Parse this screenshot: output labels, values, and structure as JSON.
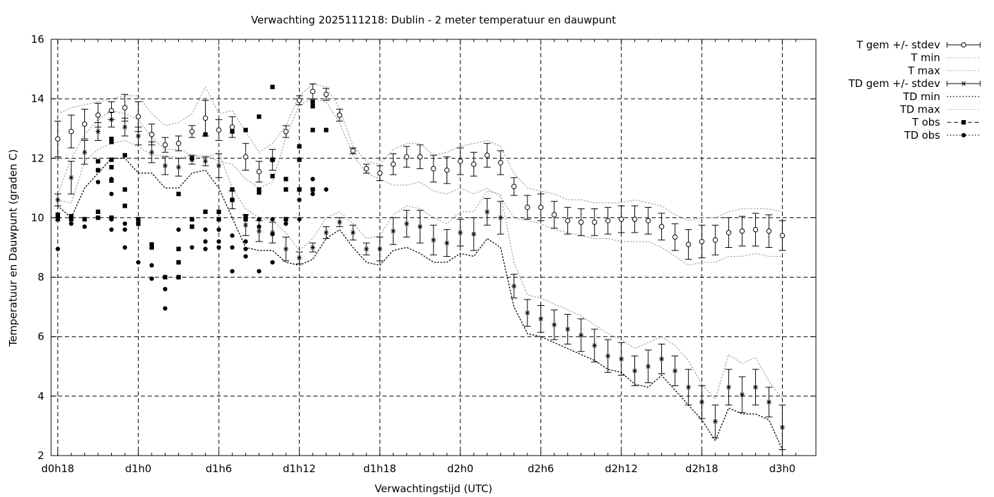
{
  "chart_data": {
    "type": "line",
    "title": "Verwachting 2025111218: Dublin - 2 meter temperatuur en dauwpunt",
    "xlabel": "Verwachtingstijd (UTC)",
    "ylabel": "Temperatuur en Dauwpunt (graden C)",
    "xlim": [
      -0.5,
      56.5
    ],
    "ylim": [
      2,
      16
    ],
    "y_ticks": [
      2,
      4,
      6,
      8,
      10,
      12,
      14,
      16
    ],
    "x_ticks": [
      {
        "x": 0,
        "label": "d0h18"
      },
      {
        "x": 6,
        "label": "d1h0"
      },
      {
        "x": 12,
        "label": "d1h6"
      },
      {
        "x": 18,
        "label": "d1h12"
      },
      {
        "x": 24,
        "label": "d1h18"
      },
      {
        "x": 30,
        "label": "d2h0"
      },
      {
        "x": 36,
        "label": "d2h6"
      },
      {
        "x": 42,
        "label": "d2h12"
      },
      {
        "x": 48,
        "label": "d2h18"
      },
      {
        "x": 54,
        "label": "d3h0"
      }
    ],
    "x_unit": "hours since d0h18",
    "grid": true,
    "legend_position": "outside-right",
    "colors": {
      "line": "#000000",
      "grid": "#000000",
      "minmax": "#999999"
    },
    "legend": [
      "T gem +/- stdev",
      "T min",
      "T max",
      "TD gem +/- stdev",
      "TD min",
      "TD max",
      "T obs",
      "TD obs"
    ],
    "series": [
      {
        "name": "T gem +/- stdev",
        "style": "errorbars-open-circle",
        "x": [
          0,
          1,
          2,
          3,
          4,
          5,
          6,
          7,
          8,
          9,
          10,
          11,
          12,
          13,
          14,
          15,
          16,
          17,
          18,
          19,
          20,
          21,
          22,
          23,
          24,
          25,
          26,
          27,
          28,
          29,
          30,
          31,
          32,
          33,
          34,
          35,
          36,
          37,
          38,
          39,
          40,
          41,
          42,
          43,
          44,
          45,
          46,
          47,
          48,
          49,
          50,
          51,
          52,
          53,
          54
        ],
        "y": [
          12.65,
          12.9,
          13.15,
          13.45,
          13.6,
          13.7,
          13.4,
          12.8,
          12.45,
          12.5,
          12.9,
          13.35,
          12.95,
          13.05,
          12.05,
          11.55,
          11.95,
          12.9,
          13.95,
          14.25,
          14.15,
          13.45,
          12.25,
          11.65,
          11.5,
          11.8,
          12.05,
          12.05,
          11.65,
          11.6,
          11.9,
          11.8,
          12.1,
          11.85,
          11.05,
          10.35,
          10.35,
          10.1,
          9.9,
          9.85,
          9.85,
          9.9,
          9.95,
          9.95,
          9.9,
          9.7,
          9.35,
          9.1,
          9.2,
          9.25,
          9.5,
          9.55,
          9.6,
          9.55,
          9.4
        ],
        "err": [
          0.6,
          0.55,
          0.5,
          0.4,
          0.3,
          0.45,
          0.5,
          0.35,
          0.25,
          0.25,
          0.2,
          0.6,
          0.35,
          0.35,
          0.45,
          0.35,
          0.35,
          0.2,
          0.15,
          0.25,
          0.2,
          0.2,
          0.1,
          0.15,
          0.25,
          0.35,
          0.35,
          0.4,
          0.45,
          0.45,
          0.45,
          0.4,
          0.4,
          0.4,
          0.3,
          0.4,
          0.45,
          0.45,
          0.45,
          0.45,
          0.45,
          0.45,
          0.45,
          0.45,
          0.45,
          0.45,
          0.45,
          0.5,
          0.55,
          0.5,
          0.5,
          0.5,
          0.55,
          0.55,
          0.5
        ]
      },
      {
        "name": "T min",
        "style": "dotted-grey",
        "x": [
          0,
          1,
          2,
          3,
          4,
          5,
          6,
          7,
          8,
          9,
          10,
          11,
          12,
          13,
          14,
          15,
          16,
          17,
          18,
          19,
          20,
          21,
          22,
          23,
          24,
          25,
          26,
          27,
          28,
          29,
          30,
          31,
          32,
          33,
          34,
          35,
          36,
          37,
          38,
          39,
          40,
          41,
          42,
          43,
          44,
          45,
          46,
          47,
          48,
          49,
          50,
          51,
          52,
          53,
          54
        ],
        "y": [
          10.6,
          10.5,
          11.9,
          12.3,
          12.5,
          12.6,
          12.4,
          12.1,
          12.1,
          12.0,
          12.1,
          12.1,
          11.9,
          11.8,
          11.3,
          11.0,
          11.2,
          12.7,
          13.8,
          14.0,
          13.9,
          13.2,
          12.1,
          11.5,
          11.3,
          11.1,
          11.1,
          11.2,
          10.9,
          10.8,
          11.0,
          10.8,
          11.0,
          10.7,
          10.0,
          9.9,
          9.8,
          9.6,
          9.5,
          9.4,
          9.3,
          9.3,
          9.2,
          9.2,
          9.2,
          9.0,
          8.7,
          8.4,
          8.5,
          8.5,
          8.7,
          8.7,
          8.8,
          8.7,
          8.7
        ]
      },
      {
        "name": "T max",
        "style": "dotted-grey",
        "x": [
          0,
          1,
          2,
          3,
          4,
          5,
          6,
          7,
          8,
          9,
          10,
          11,
          12,
          13,
          14,
          15,
          16,
          17,
          18,
          19,
          20,
          21,
          22,
          23,
          24,
          25,
          26,
          27,
          28,
          29,
          30,
          31,
          32,
          33,
          34,
          35,
          36,
          37,
          38,
          39,
          40,
          41,
          42,
          43,
          44,
          45,
          46,
          47,
          48,
          49,
          50,
          51,
          52,
          53,
          54
        ],
        "y": [
          13.5,
          13.7,
          13.8,
          13.9,
          14.0,
          14.1,
          14.1,
          13.5,
          13.1,
          13.2,
          13.5,
          14.4,
          13.5,
          13.6,
          12.9,
          12.2,
          12.5,
          13.1,
          14.1,
          14.5,
          14.4,
          13.7,
          12.4,
          11.9,
          11.8,
          12.3,
          12.5,
          12.5,
          12.1,
          12.2,
          12.4,
          12.5,
          12.6,
          12.4,
          11.5,
          11.0,
          10.9,
          10.8,
          10.6,
          10.6,
          10.5,
          10.5,
          10.5,
          10.6,
          10.5,
          10.4,
          10.1,
          9.9,
          10.0,
          10.0,
          10.2,
          10.3,
          10.3,
          10.3,
          10.2
        ]
      },
      {
        "name": "TD gem +/- stdev",
        "style": "errorbars-star",
        "x": [
          0,
          1,
          2,
          3,
          4,
          5,
          6,
          7,
          8,
          9,
          10,
          11,
          12,
          13,
          14,
          15,
          16,
          17,
          18,
          19,
          20,
          21,
          22,
          23,
          24,
          25,
          26,
          27,
          28,
          29,
          30,
          31,
          32,
          33,
          34,
          35,
          36,
          37,
          38,
          39,
          40,
          41,
          42,
          43,
          44,
          45,
          46,
          47,
          48,
          49,
          50,
          51,
          52,
          53,
          54
        ],
        "y": [
          10.6,
          11.35,
          12.2,
          12.9,
          13.3,
          13.05,
          12.75,
          12.2,
          11.75,
          11.7,
          11.95,
          11.9,
          11.75,
          10.6,
          9.75,
          9.55,
          9.5,
          8.95,
          8.65,
          9.0,
          9.5,
          9.85,
          9.5,
          8.95,
          8.95,
          9.55,
          9.8,
          9.7,
          9.25,
          9.15,
          9.5,
          9.45,
          10.2,
          10.0,
          7.7,
          6.8,
          6.6,
          6.4,
          6.25,
          6.05,
          5.7,
          5.35,
          5.25,
          4.85,
          5.0,
          5.25,
          4.85,
          4.3,
          3.8,
          3.15,
          4.3,
          4.05,
          4.3,
          3.8,
          2.95
        ],
        "err": [
          0.2,
          0.55,
          0.4,
          0.3,
          0.25,
          0.3,
          0.3,
          0.35,
          0.3,
          0.3,
          0.15,
          0.15,
          0.4,
          0.3,
          0.35,
          0.35,
          0.35,
          0.4,
          0.2,
          0.15,
          0.2,
          0.15,
          0.25,
          0.2,
          0.4,
          0.45,
          0.45,
          0.55,
          0.5,
          0.45,
          0.45,
          0.55,
          0.45,
          0.55,
          0.4,
          0.45,
          0.45,
          0.5,
          0.5,
          0.55,
          0.55,
          0.55,
          0.55,
          0.5,
          0.55,
          0.5,
          0.5,
          0.6,
          0.55,
          0.55,
          0.6,
          0.6,
          0.6,
          0.5,
          0.75
        ]
      },
      {
        "name": "TD min",
        "style": "dotted-black",
        "x": [
          0,
          1,
          2,
          3,
          4,
          5,
          6,
          7,
          8,
          9,
          10,
          11,
          12,
          13,
          14,
          15,
          16,
          17,
          18,
          19,
          20,
          21,
          22,
          23,
          24,
          25,
          26,
          27,
          28,
          29,
          30,
          31,
          32,
          33,
          34,
          35,
          36,
          37,
          38,
          39,
          40,
          41,
          42,
          43,
          44,
          45,
          46,
          47,
          48,
          49,
          50,
          51,
          52,
          53,
          54
        ],
        "y": [
          10.4,
          10.0,
          11.0,
          11.5,
          12.0,
          12.0,
          11.5,
          11.5,
          11.0,
          11.0,
          11.5,
          11.6,
          11.0,
          10.0,
          9.0,
          8.9,
          8.9,
          8.5,
          8.4,
          8.6,
          9.3,
          9.6,
          9.0,
          8.5,
          8.4,
          8.9,
          9.0,
          8.8,
          8.5,
          8.5,
          8.8,
          8.7,
          9.3,
          9.0,
          7.0,
          6.1,
          6.0,
          5.8,
          5.6,
          5.4,
          5.2,
          4.9,
          4.8,
          4.4,
          4.3,
          4.7,
          4.2,
          3.7,
          3.2,
          2.5,
          3.6,
          3.4,
          3.4,
          3.2,
          2.2
        ]
      },
      {
        "name": "TD max",
        "style": "dotted-grey",
        "x": [
          0,
          1,
          2,
          3,
          4,
          5,
          6,
          7,
          8,
          9,
          10,
          11,
          12,
          13,
          14,
          15,
          16,
          17,
          18,
          19,
          20,
          21,
          22,
          23,
          24,
          25,
          26,
          27,
          28,
          29,
          30,
          31,
          32,
          33,
          34,
          35,
          36,
          37,
          38,
          39,
          40,
          41,
          42,
          43,
          44,
          45,
          46,
          47,
          48,
          49,
          50,
          51,
          52,
          53,
          54
        ],
        "y": [
          10.8,
          12.0,
          12.8,
          13.3,
          13.6,
          13.5,
          13.3,
          12.7,
          12.3,
          12.3,
          12.1,
          12.0,
          12.2,
          11.0,
          10.3,
          10.0,
          9.9,
          9.5,
          8.9,
          9.3,
          10.0,
          10.2,
          9.8,
          9.3,
          9.4,
          10.1,
          10.4,
          10.3,
          10.0,
          9.8,
          10.2,
          10.2,
          10.9,
          10.8,
          8.5,
          7.4,
          7.3,
          7.1,
          6.9,
          6.7,
          6.4,
          6.1,
          5.9,
          5.6,
          5.8,
          6.0,
          5.7,
          5.2,
          4.4,
          3.9,
          5.4,
          5.1,
          5.3,
          4.5,
          3.9
        ]
      },
      {
        "name": "T obs",
        "style": "filled-square",
        "x": [
          0,
          0,
          0,
          1,
          1,
          1,
          2,
          3,
          3,
          3,
          3,
          4,
          4,
          4,
          4,
          4,
          4,
          5,
          5,
          5,
          6,
          6,
          7,
          7,
          8,
          9,
          9,
          9,
          9,
          10,
          10,
          10,
          11,
          11,
          12,
          12,
          13,
          13,
          13,
          14,
          14,
          14,
          15,
          15,
          15,
          16,
          16,
          16,
          17,
          17,
          17,
          18,
          18,
          18,
          19,
          19,
          19,
          19,
          20
        ],
        "y": [
          10.1,
          10.0,
          9.95,
          10.05,
          10.0,
          9.95,
          9.95,
          11.9,
          11.6,
          10.2,
          10.0,
          12.65,
          12.55,
          11.95,
          11.7,
          11.25,
          10.0,
          12.1,
          10.95,
          10.4,
          9.95,
          9.8,
          9.1,
          9.0,
          8.0,
          10.8,
          8.95,
          8.5,
          8.0,
          12.0,
          9.95,
          9.7,
          12.8,
          10.2,
          10.2,
          9.95,
          12.9,
          10.95,
          10.6,
          12.95,
          10.05,
          9.95,
          13.4,
          10.95,
          10.85,
          14.4,
          11.95,
          11.4,
          11.3,
          10.95,
          9.95,
          12.4,
          11.95,
          10.95,
          13.9,
          13.75,
          12.95,
          10.95,
          12.95
        ]
      },
      {
        "name": "TD obs",
        "style": "filled-circle",
        "x": [
          0,
          1,
          1,
          2,
          3,
          3,
          4,
          4,
          4,
          4,
          4,
          5,
          5,
          5,
          6,
          7,
          7,
          8,
          8,
          9,
          9,
          10,
          10,
          10,
          11,
          11,
          11,
          12,
          12,
          12,
          13,
          13,
          13,
          14,
          14,
          14,
          14,
          15,
          15,
          15,
          16,
          16,
          16,
          17,
          17,
          18,
          18,
          18,
          19,
          19,
          19,
          20
        ],
        "y": [
          8.95,
          10.0,
          9.8,
          9.7,
          11.2,
          10.0,
          11.3,
          10.8,
          9.95,
          9.6,
          9.95,
          9.8,
          9.6,
          9.0,
          8.5,
          8.4,
          7.95,
          7.6,
          6.95,
          9.6,
          8.0,
          9.95,
          9.7,
          9.0,
          9.6,
          9.2,
          8.95,
          9.2,
          9.0,
          9.6,
          9.4,
          9.0,
          8.2,
          9.95,
          9.2,
          8.95,
          8.7,
          9.95,
          9.7,
          8.2,
          9.95,
          9.45,
          8.5,
          9.95,
          9.8,
          10.95,
          10.6,
          9.95,
          11.3,
          10.95,
          10.8,
          10.95
        ]
      }
    ]
  }
}
